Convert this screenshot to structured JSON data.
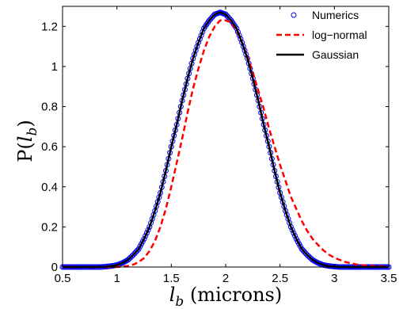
{
  "chart_data": {
    "type": "line",
    "title": "",
    "xlabel": {
      "main": "l",
      "sub": "b",
      "suffix": " (microns)"
    },
    "ylabel": {
      "pre": "P(",
      "main": "l",
      "sub": "b",
      "post": ")"
    },
    "xlim": [
      0.5,
      3.5
    ],
    "ylim": [
      0,
      1.3
    ],
    "x_ticks": [
      0.5,
      1,
      1.5,
      2,
      2.5,
      3,
      3.5
    ],
    "x_tick_labels": [
      "0.5",
      "1",
      "1.5",
      "2",
      "2.5",
      "3",
      "3.5"
    ],
    "y_ticks": [
      0,
      0.2,
      0.4,
      0.6,
      0.8,
      1,
      1.2
    ],
    "y_tick_labels": [
      "0",
      "0.2",
      "0.4",
      "0.6",
      "0.8",
      "1",
      "1.2"
    ],
    "grid": false,
    "legend_position": "top-right",
    "legend": [
      "Numerics",
      "log−normal",
      "Gaussian"
    ],
    "series": [
      {
        "name": "Numerics",
        "style": "markers-circle",
        "color": "#0000ff",
        "x": [
          0.5,
          0.55,
          0.6,
          0.65,
          0.7,
          0.75,
          0.8,
          0.85,
          0.9,
          0.95,
          1.0,
          1.05,
          1.1,
          1.15,
          1.2,
          1.25,
          1.3,
          1.35,
          1.4,
          1.45,
          1.5,
          1.55,
          1.6,
          1.65,
          1.7,
          1.75,
          1.8,
          1.85,
          1.9,
          1.95,
          2.0,
          2.05,
          2.1,
          2.15,
          2.2,
          2.25,
          2.3,
          2.35,
          2.4,
          2.45,
          2.5,
          2.55,
          2.6,
          2.65,
          2.7,
          2.75,
          2.8,
          2.85,
          2.9,
          2.95,
          3.0,
          3.05,
          3.1,
          3.15,
          3.2,
          3.25,
          3.3,
          3.35,
          3.4,
          3.45,
          3.5
        ],
        "y": [
          0.0,
          0.0,
          0.0,
          0.0,
          0.0,
          0.0,
          0.0,
          0.0,
          0.002,
          0.005,
          0.01,
          0.02,
          0.035,
          0.06,
          0.09,
          0.14,
          0.2,
          0.28,
          0.37,
          0.48,
          0.6,
          0.71,
          0.83,
          0.94,
          1.04,
          1.12,
          1.19,
          1.23,
          1.26,
          1.27,
          1.26,
          1.23,
          1.19,
          1.12,
          1.04,
          0.94,
          0.83,
          0.71,
          0.6,
          0.48,
          0.37,
          0.28,
          0.2,
          0.14,
          0.09,
          0.06,
          0.035,
          0.02,
          0.01,
          0.005,
          0.002,
          0.0,
          0.0,
          0.0,
          0.0,
          0.0,
          0.0,
          0.0,
          0.0,
          0.0,
          0.0
        ]
      },
      {
        "name": "log−normal",
        "style": "dashed",
        "color": "#ff0000",
        "x": [
          0.5,
          0.6,
          0.7,
          0.8,
          0.9,
          1.0,
          1.05,
          1.1,
          1.15,
          1.2,
          1.25,
          1.3,
          1.35,
          1.4,
          1.45,
          1.5,
          1.55,
          1.6,
          1.65,
          1.7,
          1.75,
          1.8,
          1.85,
          1.9,
          1.95,
          2.0,
          2.05,
          2.1,
          2.15,
          2.2,
          2.25,
          2.3,
          2.35,
          2.4,
          2.45,
          2.5,
          2.55,
          2.6,
          2.65,
          2.7,
          2.75,
          2.8,
          2.85,
          2.9,
          2.95,
          3.0,
          3.1,
          3.2,
          3.3,
          3.4,
          3.5
        ],
        "y": [
          0.0,
          0.0,
          0.0,
          0.0,
          0.0,
          0.0,
          0.002,
          0.005,
          0.012,
          0.025,
          0.045,
          0.08,
          0.13,
          0.2,
          0.29,
          0.4,
          0.52,
          0.64,
          0.77,
          0.89,
          0.99,
          1.08,
          1.15,
          1.2,
          1.23,
          1.23,
          1.22,
          1.18,
          1.12,
          1.05,
          0.97,
          0.88,
          0.79,
          0.69,
          0.6,
          0.51,
          0.43,
          0.35,
          0.29,
          0.23,
          0.18,
          0.14,
          0.11,
          0.083,
          0.062,
          0.046,
          0.025,
          0.013,
          0.007,
          0.004,
          0.002
        ]
      },
      {
        "name": "Gaussian",
        "style": "solid",
        "color": "#000000",
        "x": [
          0.5,
          0.6,
          0.7,
          0.8,
          0.9,
          0.95,
          1.0,
          1.05,
          1.1,
          1.15,
          1.2,
          1.25,
          1.3,
          1.35,
          1.4,
          1.45,
          1.5,
          1.55,
          1.6,
          1.65,
          1.7,
          1.75,
          1.8,
          1.85,
          1.9,
          1.95,
          2.0,
          2.05,
          2.1,
          2.15,
          2.2,
          2.25,
          2.3,
          2.35,
          2.4,
          2.45,
          2.5,
          2.55,
          2.6,
          2.65,
          2.7,
          2.75,
          2.8,
          2.85,
          2.9,
          2.95,
          3.0,
          3.05,
          3.1,
          3.2,
          3.3,
          3.4,
          3.5
        ],
        "y": [
          0.0,
          0.0,
          0.0,
          0.0,
          0.002,
          0.005,
          0.01,
          0.02,
          0.035,
          0.06,
          0.09,
          0.14,
          0.2,
          0.28,
          0.37,
          0.48,
          0.6,
          0.71,
          0.83,
          0.94,
          1.04,
          1.12,
          1.19,
          1.23,
          1.26,
          1.27,
          1.26,
          1.23,
          1.19,
          1.12,
          1.04,
          0.94,
          0.83,
          0.71,
          0.6,
          0.48,
          0.37,
          0.28,
          0.2,
          0.14,
          0.09,
          0.06,
          0.035,
          0.02,
          0.01,
          0.005,
          0.002,
          0.0,
          0.0,
          0.0,
          0.0,
          0.0,
          0.0
        ]
      }
    ]
  }
}
